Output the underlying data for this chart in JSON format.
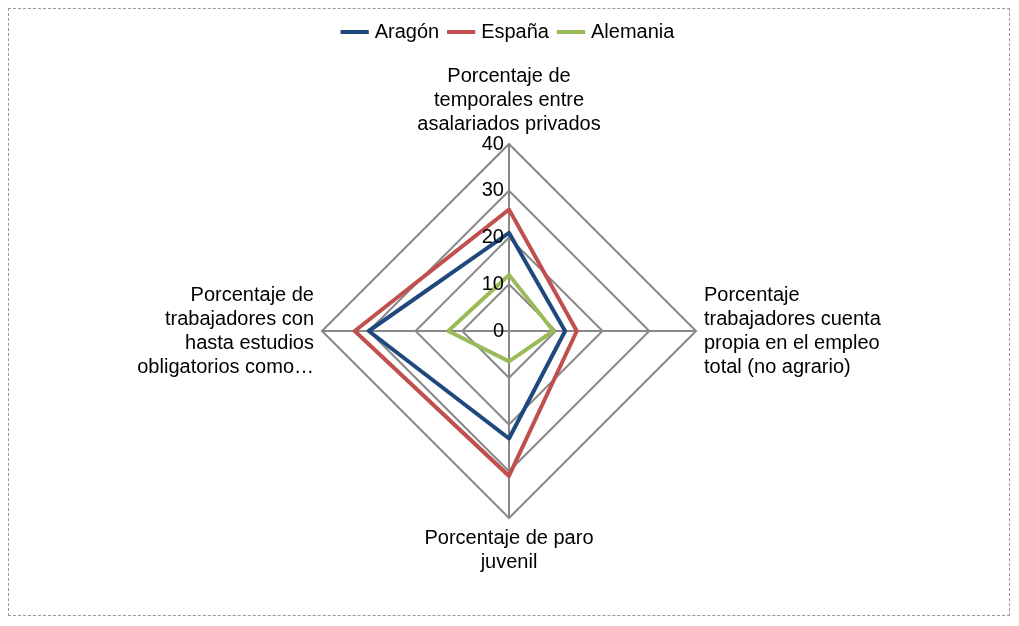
{
  "chart_data": {
    "type": "radar",
    "categories": [
      "Porcentaje de temporales entre asalariados privados",
      "Porcentaje trabajadores cuenta propia  en el empleo total (no agrario)",
      "Porcentaje de paro juvenil",
      "Porcentaje de trabajadores con hasta estudios obligatorios como…"
    ],
    "series": [
      {
        "name": "Aragón",
        "color": "#1f497d",
        "values": [
          21,
          12,
          23,
          30
        ]
      },
      {
        "name": "España",
        "color": "#c0504d",
        "values": [
          26,
          14.5,
          31,
          33
        ]
      },
      {
        "name": "Alemania",
        "color": "#9bbb59",
        "values": [
          12,
          9.5,
          6.5,
          13
        ]
      }
    ],
    "ylim": [
      0,
      40
    ],
    "yticks": [
      0,
      10,
      20,
      30,
      40
    ],
    "legend": "top",
    "grid": true,
    "marker": "none"
  }
}
